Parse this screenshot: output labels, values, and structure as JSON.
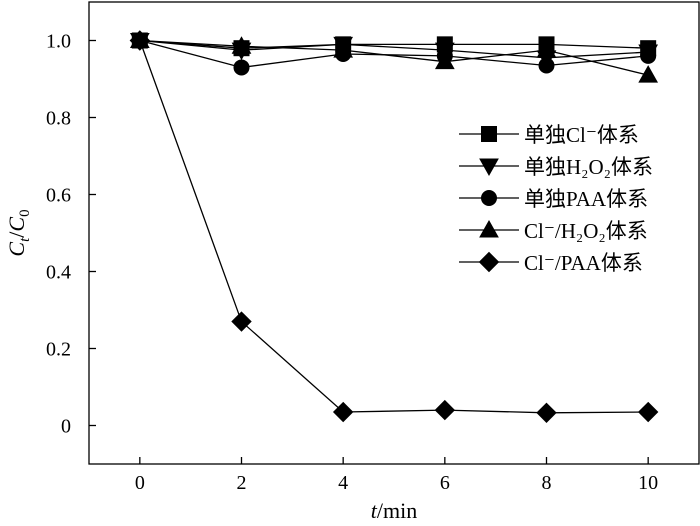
{
  "chart_data": {
    "type": "line",
    "xlabel": {
      "var": "t",
      "unit": "/min"
    },
    "ylabel": {
      "var": "C",
      "sub1": "t",
      "sep": "/",
      "sub0": "0"
    },
    "xlim": [
      -1,
      11
    ],
    "ylim": [
      -0.1,
      1.1
    ],
    "x_ticks": [
      0,
      2,
      4,
      6,
      8,
      10
    ],
    "y_ticks": [
      0,
      0.2,
      0.4,
      0.6,
      0.8,
      1.0
    ],
    "y_tick_labels": [
      "0",
      "0.2",
      "0.4",
      "0.6",
      "0.8",
      "1.0"
    ],
    "grid": false,
    "legend_position": "right",
    "x": [
      0,
      2,
      4,
      6,
      8,
      10
    ],
    "series": [
      {
        "name": "单独Cl⁻体系",
        "marker": "square",
        "values": [
          1.0,
          0.98,
          0.99,
          0.99,
          0.99,
          0.98
        ]
      },
      {
        "name": "单独H₂O₂体系",
        "marker": "triangle-down",
        "values": [
          1.0,
          0.975,
          0.99,
          0.975,
          0.955,
          0.97
        ]
      },
      {
        "name": "单独PAA体系",
        "marker": "circle",
        "values": [
          1.0,
          0.93,
          0.965,
          0.96,
          0.935,
          0.96
        ]
      },
      {
        "name": "Cl⁻/H₂O₂体系",
        "marker": "triangle-up",
        "values": [
          1.0,
          0.985,
          0.975,
          0.945,
          0.975,
          0.91
        ]
      },
      {
        "name": "Cl⁻/PAA体系",
        "marker": "diamond",
        "values": [
          1.0,
          0.27,
          0.035,
          0.04,
          0.033,
          0.035
        ]
      }
    ]
  }
}
